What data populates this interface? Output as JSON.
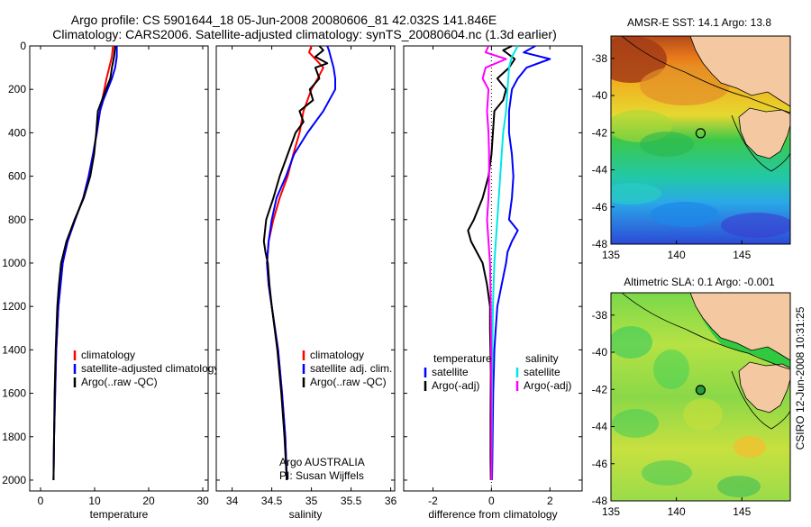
{
  "header": {
    "line1": "Argo profile: CS 5901644_18 05-Jun-2008 20080606_81 42.032S 141.846E",
    "line2": "Climatology: CARS2006. Satellite-adjusted climatology: synTS_20080604.nc (1.3d earlier)"
  },
  "colors": {
    "clim": "#ff0000",
    "sat": "#0000ff",
    "argo": "#000000",
    "sal_sat": "#00e6e6",
    "sal_argo": "#ff00ff"
  },
  "chart_data": [
    {
      "id": "temperature",
      "type": "line",
      "xlabel": "temperature",
      "ylabel": "",
      "xlim": [
        -2,
        31
      ],
      "ylim": [
        0,
        2050
      ],
      "xticks": [
        0,
        10,
        20,
        30
      ],
      "xtick_labels": [
        "0",
        "10",
        "20",
        "30"
      ],
      "yticks": [
        0,
        200,
        400,
        600,
        800,
        1000,
        1200,
        1400,
        1600,
        1800,
        2000
      ],
      "ytick_labels": [
        "0",
        "200",
        "400",
        "600",
        "800",
        "1000",
        "1200",
        "1400",
        "1600",
        "1800",
        "2000"
      ],
      "legend_position": "lower-right",
      "legend": [
        "climatology",
        "satellite-adjusted climatology",
        "Argo(..raw -QC)"
      ],
      "series": [
        {
          "name": "climatology",
          "color_key": "clim",
          "depth": [
            0,
            50,
            100,
            150,
            200,
            250,
            300,
            400,
            500,
            600,
            700,
            800,
            900,
            1000,
            1200,
            1400,
            1600,
            1800,
            2000
          ],
          "values": [
            13.4,
            13.2,
            12.7,
            12.2,
            11.8,
            11.4,
            11.0,
            10.4,
            9.7,
            8.9,
            7.9,
            6.4,
            5.0,
            4.1,
            3.3,
            2.9,
            2.7,
            2.5,
            2.4
          ]
        },
        {
          "name": "satellite-adjusted climatology",
          "color_key": "sat",
          "depth": [
            0,
            50,
            100,
            150,
            200,
            250,
            300,
            400,
            500,
            600,
            700,
            800,
            900,
            1000,
            1200,
            1400,
            1600,
            1800,
            2000
          ],
          "values": [
            14.1,
            14.1,
            13.8,
            13.2,
            12.4,
            11.6,
            11.0,
            10.4,
            9.7,
            8.9,
            7.9,
            6.4,
            5.0,
            4.1,
            3.3,
            2.9,
            2.7,
            2.5,
            2.4
          ]
        },
        {
          "name": "Argo(..raw -QC)",
          "color_key": "argo",
          "depth": [
            0,
            50,
            100,
            150,
            200,
            300,
            400,
            500,
            600,
            700,
            800,
            900,
            1000,
            1100,
            1200,
            1400,
            1600,
            1800,
            2000
          ],
          "values": [
            13.8,
            13.6,
            13.2,
            12.9,
            12.1,
            10.6,
            10.3,
            9.9,
            9.2,
            8.0,
            6.3,
            4.8,
            3.8,
            3.4,
            3.1,
            2.8,
            2.6,
            2.5,
            2.4
          ]
        }
      ]
    },
    {
      "id": "salinity",
      "type": "line",
      "xlabel": "salinity",
      "ylabel": "",
      "xlim": [
        33.8,
        36.05
      ],
      "ylim": [
        0,
        2050
      ],
      "xticks": [
        34,
        34.5,
        35,
        35.5,
        36
      ],
      "xtick_labels": [
        "34",
        "34.5",
        "35",
        "35.5",
        "36"
      ],
      "yticks": [
        0,
        200,
        400,
        600,
        800,
        1000,
        1200,
        1400,
        1600,
        1800,
        2000
      ],
      "legend_position": "lower-right",
      "legend": [
        "climatology",
        "satellite adj. clim.",
        "Argo(..raw -QC)"
      ],
      "annotation": [
        "Argo AUSTRALIA",
        "PI: Susan Wijffels"
      ],
      "series": [
        {
          "name": "climatology",
          "color_key": "clim",
          "depth": [
            0,
            30,
            60,
            100,
            150,
            200,
            300,
            400,
            500,
            600,
            700,
            800,
            900,
            1000,
            1100,
            1200,
            1400,
            1600,
            1800,
            2000
          ],
          "values": [
            35.0,
            34.97,
            35.05,
            35.15,
            35.08,
            35.0,
            34.9,
            34.85,
            34.77,
            34.7,
            34.6,
            34.52,
            34.46,
            34.44,
            34.46,
            34.5,
            34.58,
            34.63,
            34.67,
            34.69
          ]
        },
        {
          "name": "satellite adj. clim.",
          "color_key": "sat",
          "depth": [
            0,
            20,
            60,
            100,
            150,
            200,
            300,
            400,
            500,
            600,
            700,
            800,
            900,
            1000,
            1100,
            1200,
            1400,
            1600,
            1800,
            2000
          ],
          "values": [
            35.2,
            35.22,
            35.25,
            35.28,
            35.3,
            35.3,
            35.15,
            34.95,
            34.78,
            34.68,
            34.56,
            34.5,
            34.46,
            34.44,
            34.46,
            34.5,
            34.58,
            34.63,
            34.67,
            34.69
          ]
        },
        {
          "name": "Argo(..raw -QC)",
          "color_key": "argo",
          "depth": [
            0,
            20,
            50,
            80,
            100,
            150,
            200,
            250,
            300,
            350,
            400,
            500,
            600,
            700,
            800,
            900,
            950,
            1000,
            1050,
            1100,
            1200,
            1400,
            1600,
            1800,
            2000
          ],
          "values": [
            35.1,
            35.15,
            35.05,
            35.2,
            35.05,
            35.1,
            34.98,
            35.02,
            34.85,
            34.9,
            34.8,
            34.7,
            34.6,
            34.52,
            34.43,
            34.4,
            34.42,
            34.45,
            34.46,
            34.47,
            34.5,
            34.57,
            34.62,
            34.66,
            34.69
          ]
        }
      ]
    },
    {
      "id": "difference",
      "type": "line",
      "xlabel": "difference from climatology",
      "ylabel": "",
      "xlim": [
        -3,
        3.1
      ],
      "ylim": [
        0,
        2050
      ],
      "xticks": [
        -2,
        0,
        2
      ],
      "xtick_labels": [
        "-2",
        "0",
        "2"
      ],
      "yticks": [
        0,
        200,
        400,
        600,
        800,
        1000,
        1200,
        1400,
        1600,
        1800,
        2000
      ],
      "legend_position": "lower-center",
      "legend_headers": [
        "temperature",
        "salinity"
      ],
      "legend": [
        "satellite",
        "Argo(-adj)",
        "satellite",
        "Argo(-adj)"
      ],
      "series": [
        {
          "name": "temperature satellite",
          "color_key": "sat",
          "depth": [
            0,
            30,
            60,
            100,
            150,
            200,
            300,
            400,
            500,
            600,
            700,
            800,
            850,
            900,
            950,
            1000,
            1100,
            1200,
            1300,
            1400,
            1500,
            1600,
            1700,
            1800,
            1900,
            2000
          ],
          "values": [
            1.5,
            1.1,
            2.0,
            1.2,
            0.9,
            0.7,
            0.6,
            0.6,
            0.7,
            0.75,
            0.7,
            0.6,
            0.9,
            0.7,
            0.55,
            0.5,
            0.35,
            0.2,
            0.15,
            0.1,
            0.08,
            0.06,
            0.05,
            0.04,
            0.03,
            0.02
          ]
        },
        {
          "name": "temperature Argo(-adj)",
          "color_key": "argo",
          "depth": [
            0,
            20,
            60,
            100,
            150,
            200,
            250,
            300,
            400,
            500,
            600,
            700,
            800,
            850,
            900,
            950,
            1000,
            1100,
            1200,
            1300,
            1500,
            1700,
            1900,
            2000
          ],
          "values": [
            0.7,
            0.4,
            0.8,
            0.6,
            0.2,
            0.5,
            0.4,
            0.1,
            0.05,
            0.0,
            -0.1,
            -0.3,
            -0.6,
            -0.8,
            -0.7,
            -0.5,
            -0.3,
            -0.15,
            -0.05,
            -0.05,
            -0.02,
            -0.03,
            -0.03,
            -0.02
          ]
        },
        {
          "name": "salinity satellite",
          "color_key": "sal_sat",
          "depth": [
            0,
            50,
            100,
            200,
            300,
            400,
            500,
            600,
            700,
            800,
            900,
            1000,
            1200,
            1400,
            1600,
            1800,
            2000
          ],
          "values": [
            0.9,
            0.7,
            0.6,
            0.55,
            0.5,
            0.4,
            0.35,
            0.3,
            0.25,
            0.2,
            0.15,
            0.1,
            0.05,
            0.03,
            0.02,
            0.01,
            0.0
          ]
        },
        {
          "name": "salinity Argo(-adj)",
          "color_key": "sal_argo",
          "depth": [
            0,
            30,
            60,
            100,
            150,
            200,
            300,
            400,
            500,
            600,
            700,
            800,
            900,
            1000,
            1200,
            1400,
            1600,
            1800,
            2000
          ],
          "values": [
            -0.1,
            -0.2,
            0.5,
            -0.2,
            -0.3,
            -0.1,
            -0.15,
            -0.1,
            -0.08,
            -0.08,
            -0.1,
            -0.15,
            -0.1,
            -0.05,
            -0.02,
            -0.01,
            0.0,
            0.0,
            0.0
          ]
        }
      ]
    },
    {
      "id": "sst_map",
      "type": "heatmap",
      "title": "AMSR-E SST: 14.1 Argo: 13.8",
      "xlim": [
        135,
        148.7
      ],
      "ylim": [
        -48,
        -36.8
      ],
      "xticks": [
        135,
        140,
        145
      ],
      "xtick_labels": [
        "135",
        "140",
        "145"
      ],
      "yticks": [
        -38,
        -40,
        -42,
        -44,
        -46,
        -48
      ],
      "ytick_labels": [
        "-38",
        "-40",
        "-42",
        "-44",
        "-46",
        "-48"
      ],
      "profile_location": {
        "lon": 141.846,
        "lat": -42.032
      }
    },
    {
      "id": "sla_map",
      "type": "heatmap",
      "title": "Altimetric SLA: 0.1 Argo: -0.001",
      "xlim": [
        135,
        148.7
      ],
      "ylim": [
        -48,
        -36.8
      ],
      "xticks": [
        135,
        140,
        145
      ],
      "xtick_labels": [
        "135",
        "140",
        "145"
      ],
      "yticks": [
        -38,
        -40,
        -42,
        -44,
        -46,
        -48
      ],
      "ytick_labels": [
        "-38",
        "-40",
        "-42",
        "-44",
        "-46",
        "-48"
      ],
      "profile_location": {
        "lon": 141.846,
        "lat": -42.032
      }
    }
  ],
  "footer_stamp": "CSIRO 12-Jun-2008 10:31:25"
}
